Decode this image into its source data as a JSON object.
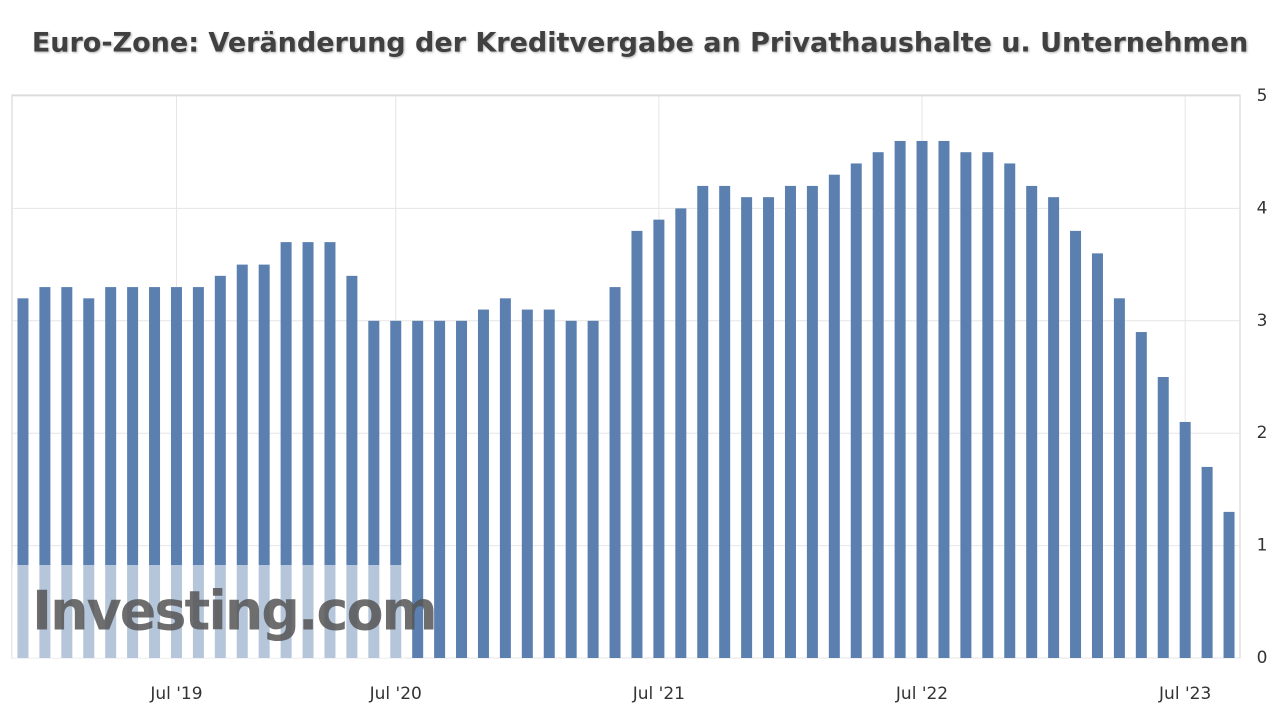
{
  "chart_data": {
    "type": "bar",
    "title": "Euro-Zone: Veränderung der Kreditvergabe an Privathaushalte u. Unternehmen",
    "watermark": "Investing.com",
    "categories": [
      null,
      null,
      null,
      null,
      null,
      null,
      null,
      "Jul '19",
      null,
      null,
      null,
      null,
      null,
      null,
      null,
      null,
      null,
      "Jul '20",
      null,
      null,
      null,
      null,
      null,
      null,
      null,
      null,
      null,
      null,
      null,
      "Jul '21",
      null,
      null,
      null,
      null,
      null,
      null,
      null,
      null,
      null,
      null,
      null,
      "Jul '22",
      null,
      null,
      null,
      null,
      null,
      null,
      null,
      null,
      null,
      null,
      null,
      "Jul '23",
      null,
      null
    ],
    "values": [
      3.2,
      3.3,
      3.3,
      3.2,
      3.3,
      3.3,
      3.3,
      3.3,
      3.3,
      3.4,
      3.5,
      3.5,
      3.7,
      3.7,
      3.7,
      3.4,
      3.0,
      3.0,
      3.0,
      3.0,
      3.0,
      3.1,
      3.2,
      3.1,
      3.1,
      3.0,
      3.0,
      3.3,
      3.8,
      3.9,
      4.0,
      4.2,
      4.2,
      4.1,
      4.1,
      4.2,
      4.2,
      4.3,
      4.4,
      4.5,
      4.6,
      4.6,
      4.6,
      4.5,
      4.5,
      4.4,
      4.2,
      4.1,
      3.8,
      3.6,
      3.2,
      2.9,
      2.5,
      2.1,
      1.7,
      1.3
    ],
    "color": "#5b80b0",
    "ylim": [
      0,
      5
    ],
    "yticks": [
      0,
      1,
      2,
      3,
      4,
      5
    ],
    "grid": true
  }
}
